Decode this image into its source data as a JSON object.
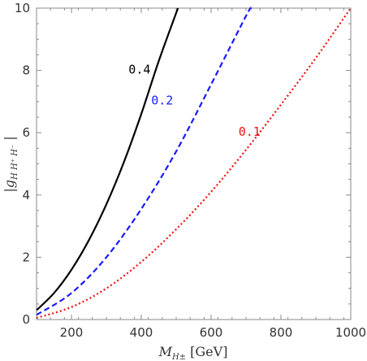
{
  "chart_data": {
    "type": "line",
    "xlabel": "M_{H±} [GeV]",
    "ylabel": "|g_{H H+ H-}|",
    "xlim": [
      100,
      1000
    ],
    "ylim": [
      0,
      10
    ],
    "x_ticks": [
      200,
      400,
      600,
      800,
      1000
    ],
    "y_ticks": [
      0,
      2,
      4,
      6,
      8,
      10
    ],
    "grid": false,
    "series": [
      {
        "name": "0.4",
        "color": "#000000",
        "style": "solid",
        "x": [
          100,
          150,
          200,
          250,
          300,
          350,
          400,
          450,
          505
        ],
        "y": [
          0.3,
          0.85,
          1.6,
          2.55,
          3.7,
          5.05,
          6.6,
          8.3,
          10.0
        ],
        "label_at": [
          395,
          7.9
        ]
      },
      {
        "name": "0.2",
        "color": "#1a1aff",
        "style": "dashed",
        "x": [
          100,
          200,
          300,
          400,
          500,
          600,
          700,
          715
        ],
        "y": [
          0.15,
          0.85,
          2.0,
          3.55,
          5.4,
          7.55,
          9.75,
          10.0
        ],
        "label_at": [
          460,
          6.9
        ]
      },
      {
        "name": "0.1",
        "color": "#ee1111",
        "style": "dotted",
        "x": [
          100,
          200,
          300,
          400,
          500,
          600,
          700,
          800,
          900,
          1000
        ],
        "y": [
          0.05,
          0.4,
          1.0,
          1.85,
          2.9,
          4.1,
          5.45,
          6.9,
          8.4,
          10.0
        ],
        "label_at": [
          710,
          5.9
        ]
      }
    ]
  }
}
